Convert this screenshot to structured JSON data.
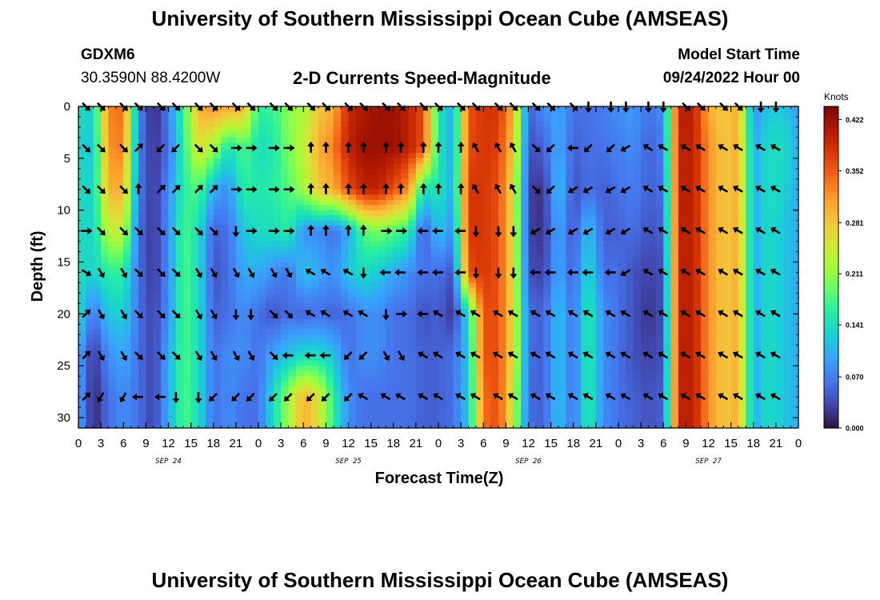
{
  "header": {
    "title": "University of Southern Mississippi Ocean Cube (AMSEAS)",
    "station": "GDXM6",
    "coords": "30.3590N  88.4200W",
    "subtitle": "2-D Currents Speed-Magnitude",
    "model_start_label": "Model Start Time",
    "model_start_value": "09/24/2022 Hour 00",
    "footer_title": "University of Southern Mississippi Ocean Cube (AMSEAS)"
  },
  "colors": {
    "scale": [
      "#30123b",
      "#4145ab",
      "#4675ed",
      "#39a2fc",
      "#1bcfd4",
      "#24eca6",
      "#61fc6c",
      "#a4fc3b",
      "#d1e834",
      "#f3c63a",
      "#fe9b2d",
      "#f36315",
      "#d93806",
      "#b11901",
      "#7a0403"
    ]
  },
  "chart_data": {
    "type": "heatmap",
    "title": "2-D Currents Speed-Magnitude",
    "xlabel": "Forecast Time(Z)",
    "ylabel": "Depth (ft)",
    "x_ticks": [
      "0",
      "3",
      "6",
      "9",
      "12",
      "15",
      "18",
      "21",
      "0",
      "3",
      "6",
      "9",
      "12",
      "15",
      "18",
      "21",
      "0",
      "3",
      "6",
      "9",
      "12",
      "15",
      "18",
      "21",
      "0",
      "3",
      "6",
      "9",
      "12",
      "15",
      "18",
      "21",
      "0"
    ],
    "x_range_hours": [
      0,
      96
    ],
    "date_labels": [
      {
        "label": "SEP 24",
        "hour": 12
      },
      {
        "label": "SEP 25",
        "hour": 36
      },
      {
        "label": "SEP 26",
        "hour": 60
      },
      {
        "label": "SEP 27",
        "hour": 84
      }
    ],
    "y_ticks": [
      "0",
      "5",
      "10",
      "15",
      "20",
      "25",
      "30"
    ],
    "y_range_ft": [
      0,
      31
    ],
    "colorbar": {
      "unit": "Knots",
      "ticks": [
        "0.000",
        "0.070",
        "0.141",
        "0.211",
        "0.281",
        "0.352",
        "0.422"
      ],
      "range": [
        0,
        0.44
      ]
    },
    "depths_ft": [
      0,
      4,
      8,
      12,
      16,
      20,
      24,
      28
    ],
    "hours": [
      0,
      2,
      4,
      6,
      8,
      10,
      12,
      14,
      16,
      18,
      20,
      22,
      24,
      26,
      28,
      30,
      32,
      34,
      36,
      38,
      40,
      42,
      44,
      46,
      48,
      50,
      52,
      54,
      56,
      58,
      60,
      62,
      64,
      66,
      68,
      70,
      72,
      74,
      76,
      78,
      80,
      82,
      84,
      86,
      88,
      90,
      92,
      94,
      96
    ],
    "speed_knots": [
      [
        0.14,
        0.13,
        0.33,
        0.34,
        0.08,
        0.01,
        0.07,
        0.17,
        0.3,
        0.32,
        0.31,
        0.3,
        0.16,
        0.17,
        0.21,
        0.22,
        0.28,
        0.3,
        0.39,
        0.41,
        0.42,
        0.42,
        0.4,
        0.36,
        0.15,
        0.1,
        0.36,
        0.38,
        0.38,
        0.3,
        0.05,
        0.08,
        0.1,
        0.06,
        0.06,
        0.07,
        0.08,
        0.09,
        0.06,
        0.08,
        0.4,
        0.4,
        0.3,
        0.28,
        0.3,
        0.08,
        0.12,
        0.12,
        0.09
      ],
      [
        0.13,
        0.12,
        0.32,
        0.33,
        0.07,
        0.02,
        0.06,
        0.16,
        0.26,
        0.22,
        0.14,
        0.18,
        0.14,
        0.15,
        0.2,
        0.24,
        0.3,
        0.33,
        0.4,
        0.42,
        0.42,
        0.42,
        0.4,
        0.36,
        0.15,
        0.1,
        0.36,
        0.38,
        0.37,
        0.28,
        0.04,
        0.05,
        0.1,
        0.05,
        0.06,
        0.06,
        0.07,
        0.08,
        0.05,
        0.07,
        0.4,
        0.4,
        0.32,
        0.28,
        0.3,
        0.1,
        0.14,
        0.14,
        0.1
      ],
      [
        0.14,
        0.13,
        0.3,
        0.3,
        0.07,
        0.02,
        0.08,
        0.16,
        0.18,
        0.1,
        0.08,
        0.16,
        0.15,
        0.16,
        0.18,
        0.22,
        0.28,
        0.3,
        0.36,
        0.4,
        0.4,
        0.36,
        0.32,
        0.14,
        0.15,
        0.1,
        0.38,
        0.38,
        0.36,
        0.26,
        0.03,
        0.02,
        0.12,
        0.04,
        0.06,
        0.05,
        0.06,
        0.07,
        0.05,
        0.06,
        0.4,
        0.4,
        0.32,
        0.28,
        0.3,
        0.1,
        0.14,
        0.13,
        0.1
      ],
      [
        0.14,
        0.13,
        0.24,
        0.24,
        0.06,
        0.02,
        0.08,
        0.18,
        0.14,
        0.05,
        0.06,
        0.12,
        0.14,
        0.14,
        0.16,
        0.08,
        0.08,
        0.06,
        0.1,
        0.18,
        0.2,
        0.18,
        0.16,
        0.04,
        0.12,
        0.08,
        0.38,
        0.38,
        0.36,
        0.26,
        0.03,
        0.02,
        0.1,
        0.04,
        0.12,
        0.05,
        0.05,
        0.06,
        0.04,
        0.05,
        0.4,
        0.4,
        0.32,
        0.28,
        0.3,
        0.1,
        0.14,
        0.12,
        0.1
      ],
      [
        0.14,
        0.13,
        0.16,
        0.16,
        0.06,
        0.02,
        0.08,
        0.18,
        0.14,
        0.04,
        0.06,
        0.1,
        0.1,
        0.08,
        0.06,
        0.12,
        0.1,
        0.08,
        0.12,
        0.14,
        0.12,
        0.1,
        0.08,
        0.06,
        0.06,
        0.04,
        0.36,
        0.38,
        0.36,
        0.26,
        0.04,
        0.03,
        0.1,
        0.05,
        0.14,
        0.06,
        0.06,
        0.04,
        0.03,
        0.04,
        0.4,
        0.4,
        0.32,
        0.28,
        0.3,
        0.1,
        0.14,
        0.12,
        0.1
      ],
      [
        0.14,
        0.06,
        0.12,
        0.13,
        0.06,
        0.03,
        0.08,
        0.18,
        0.14,
        0.05,
        0.06,
        0.08,
        0.06,
        0.04,
        0.06,
        0.05,
        0.06,
        0.05,
        0.06,
        0.08,
        0.08,
        0.06,
        0.06,
        0.04,
        0.05,
        0.02,
        0.14,
        0.36,
        0.36,
        0.26,
        0.06,
        0.05,
        0.12,
        0.06,
        0.16,
        0.08,
        0.06,
        0.04,
        0.02,
        0.04,
        0.4,
        0.4,
        0.32,
        0.28,
        0.3,
        0.1,
        0.14,
        0.12,
        0.1
      ],
      [
        0.1,
        0.02,
        0.08,
        0.1,
        0.06,
        0.03,
        0.1,
        0.18,
        0.14,
        0.06,
        0.08,
        0.08,
        0.06,
        0.1,
        0.12,
        0.14,
        0.14,
        0.12,
        0.06,
        0.08,
        0.08,
        0.06,
        0.06,
        0.05,
        0.05,
        0.06,
        0.12,
        0.36,
        0.36,
        0.26,
        0.06,
        0.05,
        0.12,
        0.06,
        0.16,
        0.08,
        0.06,
        0.04,
        0.03,
        0.04,
        0.4,
        0.4,
        0.32,
        0.28,
        0.3,
        0.1,
        0.14,
        0.12,
        0.1
      ],
      [
        0.1,
        0.01,
        0.06,
        0.08,
        0.06,
        0.03,
        0.1,
        0.18,
        0.14,
        0.06,
        0.08,
        0.06,
        0.06,
        0.14,
        0.22,
        0.3,
        0.26,
        0.16,
        0.08,
        0.06,
        0.06,
        0.06,
        0.06,
        0.05,
        0.05,
        0.06,
        0.12,
        0.34,
        0.36,
        0.24,
        0.06,
        0.05,
        0.12,
        0.06,
        0.16,
        0.08,
        0.06,
        0.05,
        0.04,
        0.05,
        0.4,
        0.4,
        0.32,
        0.28,
        0.3,
        0.1,
        0.14,
        0.12,
        0.1
      ]
    ],
    "arrow_hours": [
      1,
      3,
      6,
      8,
      11,
      13,
      16,
      18,
      21,
      23,
      26,
      28,
      31,
      33,
      36,
      38,
      41,
      43,
      46,
      48,
      51,
      53,
      56,
      58,
      61,
      63,
      66,
      68,
      71,
      73,
      76,
      78,
      81,
      83,
      86,
      88,
      91,
      93
    ],
    "arrow_direction_deg": [
      [
        -135,
        -135,
        -135,
        -135,
        -135,
        -135,
        -135,
        -135,
        -135,
        -135,
        -135,
        -135,
        -135,
        -135,
        -135,
        -135,
        -135,
        -135,
        -135,
        -135,
        -135,
        -135,
        -135,
        -135,
        -135,
        -135,
        -135,
        180,
        180,
        180,
        180,
        180,
        -135,
        -135,
        -135,
        -135,
        180,
        180
      ],
      [
        -135,
        -135,
        -135,
        -45,
        135,
        135,
        -135,
        -135,
        -90,
        -90,
        -90,
        -90,
        0,
        0,
        0,
        0,
        0,
        0,
        0,
        0,
        0,
        30,
        30,
        30,
        -135,
        135,
        90,
        135,
        135,
        120,
        60,
        60,
        60,
        60,
        60,
        60,
        60,
        60
      ],
      [
        -135,
        -135,
        -135,
        0,
        -45,
        -45,
        -45,
        -45,
        -90,
        -90,
        -90,
        -90,
        0,
        0,
        0,
        0,
        0,
        0,
        0,
        0,
        0,
        30,
        30,
        30,
        -135,
        135,
        120,
        120,
        120,
        120,
        60,
        60,
        60,
        60,
        60,
        60,
        60,
        60
      ],
      [
        -90,
        -135,
        -135,
        -135,
        -135,
        -135,
        -135,
        -135,
        180,
        -90,
        -90,
        -90,
        0,
        0,
        0,
        0,
        -90,
        -90,
        90,
        90,
        90,
        180,
        180,
        180,
        120,
        120,
        120,
        120,
        120,
        120,
        60,
        60,
        60,
        60,
        60,
        60,
        60,
        60
      ],
      [
        -120,
        -150,
        -150,
        -135,
        -135,
        -135,
        -150,
        -150,
        -150,
        -150,
        -150,
        -150,
        60,
        60,
        60,
        -180,
        90,
        90,
        90,
        90,
        90,
        180,
        180,
        180,
        90,
        90,
        90,
        90,
        90,
        120,
        60,
        60,
        60,
        60,
        60,
        60,
        60,
        60
      ],
      [
        -45,
        -150,
        -150,
        -135,
        -135,
        -135,
        -150,
        -150,
        180,
        180,
        -135,
        -135,
        60,
        60,
        60,
        60,
        -180,
        -90,
        90,
        60,
        60,
        60,
        60,
        60,
        60,
        60,
        60,
        60,
        60,
        60,
        60,
        60,
        60,
        60,
        60,
        60,
        60,
        60
      ],
      [
        -45,
        -150,
        -150,
        -135,
        -135,
        -135,
        -150,
        -150,
        -150,
        -150,
        -135,
        90,
        90,
        90,
        135,
        135,
        -150,
        -150,
        60,
        60,
        60,
        60,
        60,
        60,
        60,
        60,
        60,
        60,
        60,
        60,
        60,
        60,
        60,
        60,
        60,
        60,
        60,
        60
      ],
      [
        -45,
        150,
        150,
        90,
        90,
        180,
        180,
        135,
        135,
        135,
        135,
        135,
        135,
        135,
        135,
        60,
        60,
        60,
        60,
        60,
        60,
        60,
        60,
        60,
        60,
        60,
        60,
        60,
        60,
        60,
        60,
        60,
        60,
        60,
        60,
        60,
        60,
        60
      ]
    ]
  }
}
